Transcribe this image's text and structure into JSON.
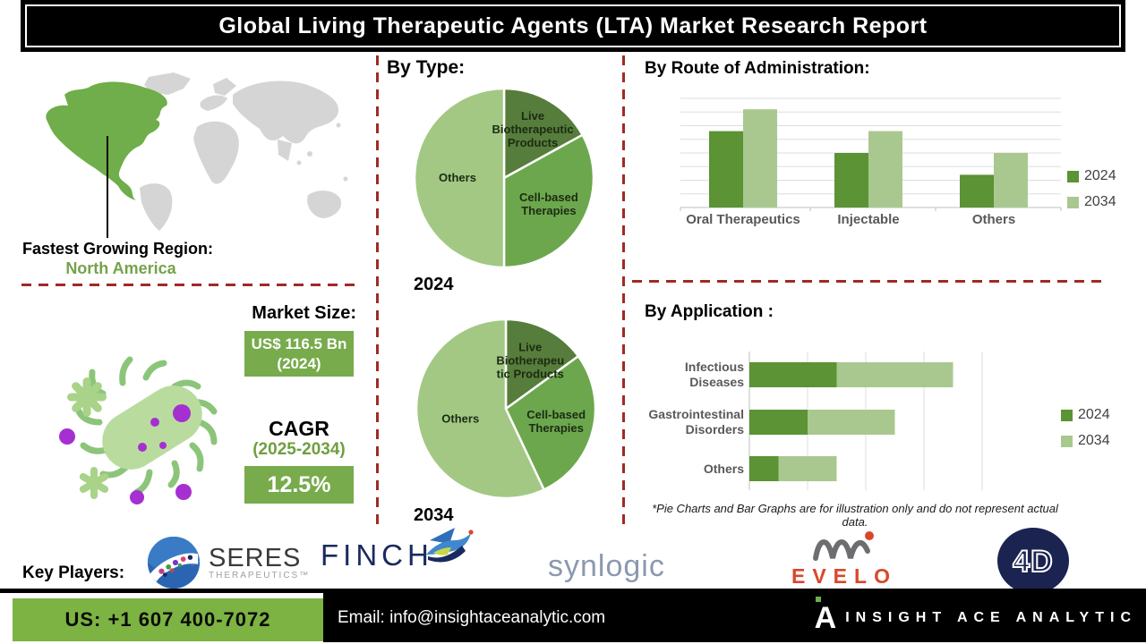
{
  "title": "Global Living Therapeutic Agents (LTA) Market Research Report",
  "colors": {
    "pie_dark_green": "#567d3b",
    "pie_medium_green": "#6ca74e",
    "pie_light_green": "#a3c884",
    "bar_2024": "#5b9335",
    "bar_2034": "#a9c88f",
    "accent_green_box": "#77ab4c",
    "footer_green": "#7cb342",
    "region_green_text": "#76a24b",
    "map_gray": "#d5d5d5",
    "map_highlight": "#6fae4a",
    "dashed_line_red": "#9e2b25"
  },
  "region": {
    "label": "Fastest Growing Region:",
    "value": "North America"
  },
  "market": {
    "heading": "Market Size:",
    "size_value": "US$ 116.5 Bn",
    "size_year": "(2024)",
    "cagr_label": "CAGR",
    "cagr_period": "(2025-2034)",
    "cagr_value": "12.5%"
  },
  "sections": {
    "by_type": "By Type:"
  },
  "footnote": "*Pie Charts and Bar Graphs are for illustration only and do not represent actual data.",
  "key_players": {
    "label": "Key Players:",
    "seres": "SERES",
    "seres_sub": "THERAPEUTICS™",
    "finch": "FINCH",
    "synlogic": "synlogic",
    "evelo": "EVELO",
    "fourd": "4D"
  },
  "footer": {
    "phone": "US: +1 607 400-7072",
    "email": "Email: info@insightaceanalytic.com",
    "brand": "INSIGHT ACE ANALYTIC"
  },
  "chart_data": [
    {
      "id": "pie_2024",
      "type": "pie",
      "title": "2024",
      "labels": [
        "Live Biotherapeutic Products",
        "Cell-based Therapies",
        "Others"
      ],
      "label_lines": [
        [
          "Live",
          "Biotherapeutic",
          "Products"
        ],
        [
          "Cell-based",
          "Therapies"
        ],
        [
          "Others"
        ]
      ],
      "values": [
        17,
        33,
        50
      ],
      "colors": [
        "#567d3b",
        "#6ca74e",
        "#a3c884"
      ],
      "note": "illustrative percentages estimated from figure"
    },
    {
      "id": "pie_2034",
      "type": "pie",
      "title": "2034",
      "labels": [
        "Live Biotherapeutic Products",
        "Cell-based Therapies",
        "Others"
      ],
      "label_lines": [
        [
          "Live",
          "Biotherapeu",
          "tic Products"
        ],
        [
          "Cell-based",
          "Therapies"
        ],
        [
          "Others"
        ]
      ],
      "values": [
        15,
        28,
        57
      ],
      "colors": [
        "#567d3b",
        "#6ca74e",
        "#a3c884"
      ],
      "note": "illustrative percentages estimated from figure"
    },
    {
      "id": "route_bar",
      "type": "bar",
      "title": "By  Route of Administration:",
      "categories": [
        "Oral Therapeutics",
        "Injectable",
        "Others"
      ],
      "series": [
        {
          "name": "2024",
          "color": "#5b9335",
          "values": [
            70,
            50,
            30
          ]
        },
        {
          "name": "2034",
          "color": "#a9c88f",
          "values": [
            90,
            70,
            50
          ]
        }
      ],
      "ylim": [
        0,
        100
      ],
      "grid": true,
      "legend_position": "right"
    },
    {
      "id": "application_bar",
      "type": "stacked-hbar",
      "title": "By Application :",
      "categories": [
        "Infectious Diseases",
        "Gastrointestinal Disorders",
        "Others"
      ],
      "category_lines": [
        [
          "Infectious",
          "Diseases"
        ],
        [
          "Gastrointestinal",
          "Disorders"
        ],
        [
          "Others"
        ]
      ],
      "series": [
        {
          "name": "2024",
          "color": "#5b9335",
          "values": [
            30,
            20,
            10
          ]
        },
        {
          "name": "2034",
          "color": "#a9c88f",
          "values": [
            40,
            30,
            20
          ]
        }
      ],
      "xlim": [
        0,
        80
      ],
      "grid": true,
      "legend_position": "right"
    }
  ]
}
